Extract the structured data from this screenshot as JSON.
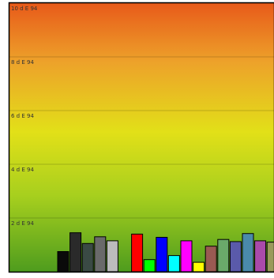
{
  "chart_data": {
    "type": "bar",
    "ylabel": "",
    "xlabel": "",
    "title": "",
    "unit": "dE94",
    "ylim": [
      0,
      10
    ],
    "y_tick_values": [
      2,
      4,
      6,
      8,
      10
    ],
    "y_tick_labels": [
      "2 d E 94",
      "4 d E 94",
      "6 d E 94",
      "8 d E 94",
      "10 d E 94"
    ],
    "grid": true,
    "background_gradient": {
      "top": "#e85a1a",
      "upper_mid": "#eda22a",
      "mid": "#e2e018",
      "lower_mid": "#a6cf1e",
      "bottom": "#4e9c1e"
    },
    "bars": [
      {
        "value": 0.75,
        "color": "#0a0a0a"
      },
      {
        "value": 1.45,
        "color": "#2a2a2a"
      },
      {
        "value": 1.05,
        "color": "#3a4a44"
      },
      {
        "value": 1.3,
        "color": "#6a6a6a"
      },
      {
        "value": 1.15,
        "color": "#bcbcbc"
      },
      {
        "value": 0,
        "color": "#ffffff"
      },
      {
        "value": 1.4,
        "color": "#ff0000"
      },
      {
        "value": 0.45,
        "color": "#00ff00"
      },
      {
        "value": 1.28,
        "color": "#0000ff"
      },
      {
        "value": 0.6,
        "color": "#00ffff"
      },
      {
        "value": 1.15,
        "color": "#ff00ff"
      },
      {
        "value": 0.35,
        "color": "#ffff00"
      },
      {
        "value": 0.95,
        "color": "#9a5a52"
      },
      {
        "value": 1.2,
        "color": "#6aaa6a"
      },
      {
        "value": 1.12,
        "color": "#5a5aaa"
      },
      {
        "value": 1.42,
        "color": "#4a8aaa"
      },
      {
        "value": 1.15,
        "color": "#aa4aaa"
      },
      {
        "value": 1.1,
        "color": "#9a9a5a"
      }
    ]
  }
}
